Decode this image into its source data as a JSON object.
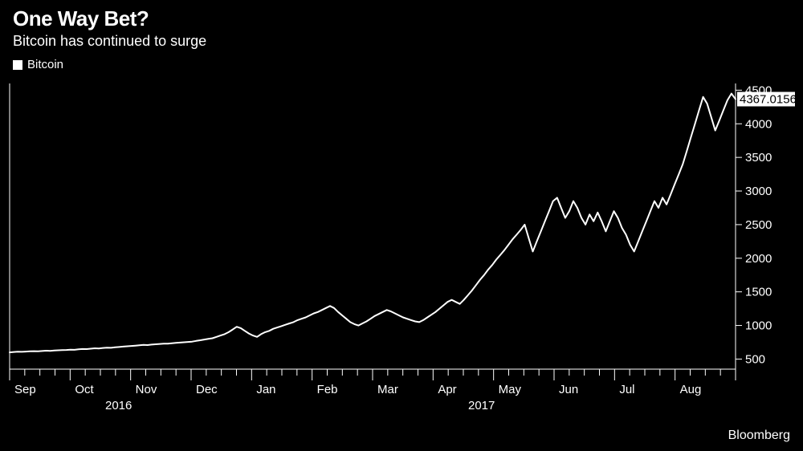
{
  "header": {
    "title": "One Way Bet?",
    "subtitle": "Bitcoin has continued to surge"
  },
  "legend": {
    "label": "Bitcoin",
    "swatch_color": "#ffffff"
  },
  "attribution": "Bloomberg",
  "chart": {
    "type": "line",
    "background_color": "#000000",
    "line_color": "#ffffff",
    "line_width": 2,
    "axis_color": "#ffffff",
    "tick_color": "#ffffff",
    "tick_length_major": 14,
    "tick_length_minor": 8,
    "tick_label_color": "#ffffff",
    "tick_label_fontsize": 15,
    "year_label_fontsize": 15,
    "y_axis_side": "right",
    "y_ticks": [
      500,
      1000,
      1500,
      2000,
      2500,
      3000,
      3500,
      4000,
      4500
    ],
    "y_lim": [
      350,
      4600
    ],
    "x_months": [
      "Sep",
      "Oct",
      "Nov",
      "Dec",
      "Jan",
      "Feb",
      "Mar",
      "Apr",
      "May",
      "Jun",
      "Jul",
      "Aug"
    ],
    "x_year_labels": [
      {
        "label": "2016",
        "under_index": 1.5
      },
      {
        "label": "2017",
        "under_index": 7.5
      }
    ],
    "last_value_label": {
      "text": "4367.0156",
      "value": 4367.0156,
      "bg": "#ffffff",
      "fg": "#000000",
      "fontsize": 15
    },
    "series": [
      600,
      605,
      610,
      608,
      612,
      615,
      618,
      616,
      620,
      625,
      622,
      628,
      630,
      633,
      635,
      640,
      638,
      645,
      650,
      648,
      655,
      660,
      658,
      665,
      670,
      668,
      675,
      680,
      685,
      690,
      695,
      700,
      705,
      710,
      708,
      715,
      720,
      725,
      730,
      728,
      735,
      740,
      745,
      750,
      755,
      760,
      770,
      780,
      790,
      800,
      810,
      830,
      850,
      870,
      900,
      940,
      980,
      960,
      920,
      880,
      850,
      830,
      870,
      900,
      920,
      950,
      970,
      990,
      1010,
      1030,
      1050,
      1080,
      1100,
      1120,
      1150,
      1180,
      1200,
      1230,
      1260,
      1290,
      1260,
      1200,
      1150,
      1100,
      1050,
      1020,
      1000,
      1030,
      1060,
      1100,
      1140,
      1170,
      1200,
      1230,
      1210,
      1180,
      1150,
      1120,
      1100,
      1080,
      1060,
      1050,
      1080,
      1120,
      1160,
      1200,
      1250,
      1300,
      1350,
      1380,
      1350,
      1320,
      1380,
      1450,
      1520,
      1600,
      1680,
      1750,
      1830,
      1900,
      1980,
      2050,
      2120,
      2200,
      2280,
      2350,
      2420,
      2500,
      2300,
      2100,
      2250,
      2400,
      2550,
      2700,
      2850,
      2900,
      2750,
      2600,
      2700,
      2850,
      2750,
      2600,
      2500,
      2650,
      2550,
      2680,
      2550,
      2400,
      2550,
      2700,
      2600,
      2450,
      2350,
      2200,
      2100,
      2250,
      2400,
      2550,
      2700,
      2850,
      2750,
      2900,
      2800,
      2950,
      3100,
      3250,
      3400,
      3600,
      3800,
      4000,
      4200,
      4400,
      4300,
      4100,
      3900,
      4050,
      4200,
      4350,
      4450,
      4367
    ]
  }
}
